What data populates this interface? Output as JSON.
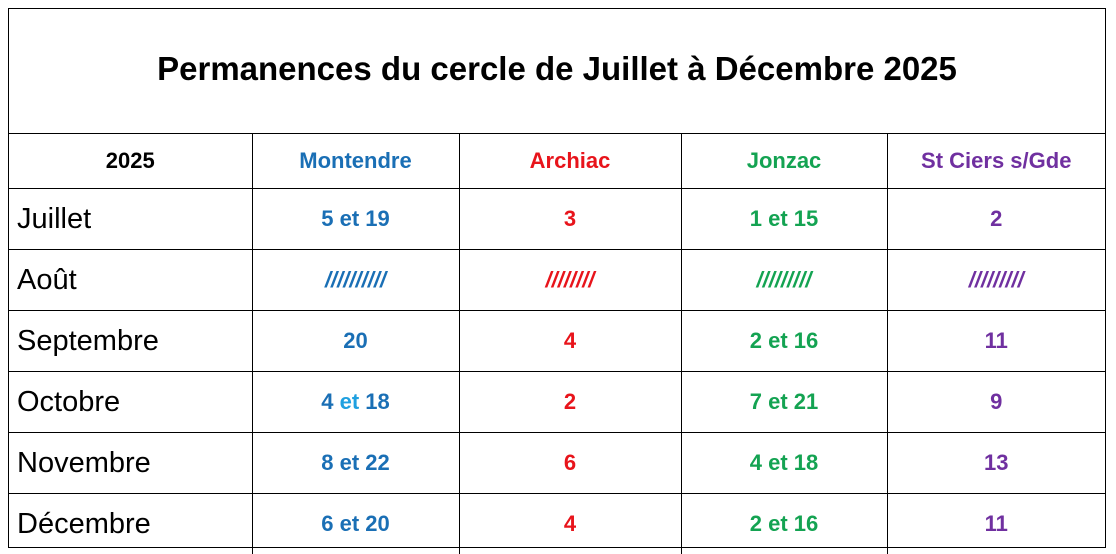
{
  "title": "Permanences du cercle de Juillet à Décembre 2025",
  "colors": {
    "montendre": "#1a6fb5",
    "archiac": "#e8141b",
    "jonzac": "#14a352",
    "stciers": "#7030a0"
  },
  "header": {
    "year": "2025",
    "montendre": "Montendre",
    "archiac": "Archiac",
    "jonzac": "Jonzac",
    "stciers": "St Ciers s/Gde"
  },
  "rows": [
    {
      "month": "Juillet",
      "montendre": "5 et 19",
      "archiac": "3",
      "jonzac": "1 et 15",
      "stciers": "2"
    },
    {
      "month": "Août",
      "montendre": "//////////",
      "archiac": "////////",
      "jonzac": "/////////",
      "stciers": "/////////"
    },
    {
      "month": "Septembre",
      "montendre": "20",
      "archiac": "4",
      "jonzac": "2 et 16",
      "stciers": "11"
    },
    {
      "month": "Octobre",
      "montendre_a": "4",
      "montendre_et": "et",
      "montendre_b": "18",
      "archiac": "2",
      "jonzac": "7 et 21",
      "stciers": "9"
    },
    {
      "month": "Novembre",
      "montendre": "8 et 22",
      "archiac": "6",
      "jonzac": "4 et 18",
      "stciers": "13"
    },
    {
      "month": "Décembre",
      "montendre": "6 et 20",
      "archiac": "4",
      "jonzac": "2 et 16",
      "stciers": "11"
    }
  ]
}
